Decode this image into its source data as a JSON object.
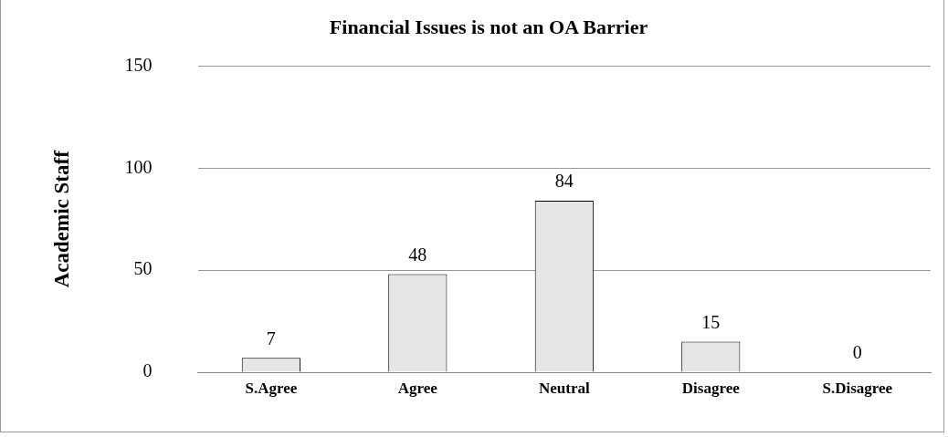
{
  "chart_data": {
    "type": "bar",
    "title": "Financial Issues is not an OA Barrier",
    "ylabel": "Academic Staff",
    "categories": [
      "S.Agree",
      "Agree",
      "Neutral",
      "Disagree",
      "S.Disagree"
    ],
    "values": [
      7,
      48,
      84,
      15,
      0
    ],
    "color": "#e6e6e6",
    "ylim": [
      0,
      150
    ],
    "yticks": [
      0,
      50,
      100,
      150
    ],
    "grid": "y",
    "data_labels": true,
    "legend": false
  }
}
